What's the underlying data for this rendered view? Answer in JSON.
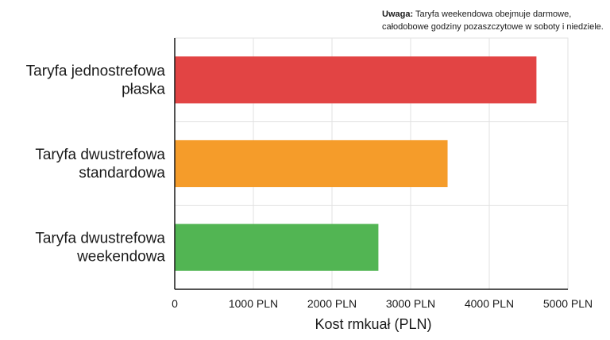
{
  "note": {
    "label": "Uwaga:",
    "text": "Taryfa weekendowa obejmuje darmowe, całodobowe godziny pozaszczytowe w soboty i niedziele."
  },
  "chart_data": {
    "type": "bar",
    "orientation": "horizontal",
    "categories": [
      [
        "Taryfa jednostrefowa",
        "płaska"
      ],
      [
        "Taryfa dwustrefowa",
        "standardowa"
      ],
      [
        "Taryfa dwustrefowa",
        "weekendowa"
      ]
    ],
    "values": [
      4600,
      3470,
      2590
    ],
    "colors": [
      "#e24444",
      "#f59c2a",
      "#52b553"
    ],
    "xlabel": "Kost rmkuał (PLN)",
    "ylabel": "",
    "xlim": [
      0,
      5000
    ],
    "xticks": [
      0,
      1000,
      2000,
      3000,
      4000,
      5000
    ],
    "xtick_labels": [
      "0",
      "1000 PLN",
      "2000 PLN",
      "3000 PLN",
      "4000 PLN",
      "5000 PLN"
    ],
    "grid": true,
    "legend": "none"
  }
}
